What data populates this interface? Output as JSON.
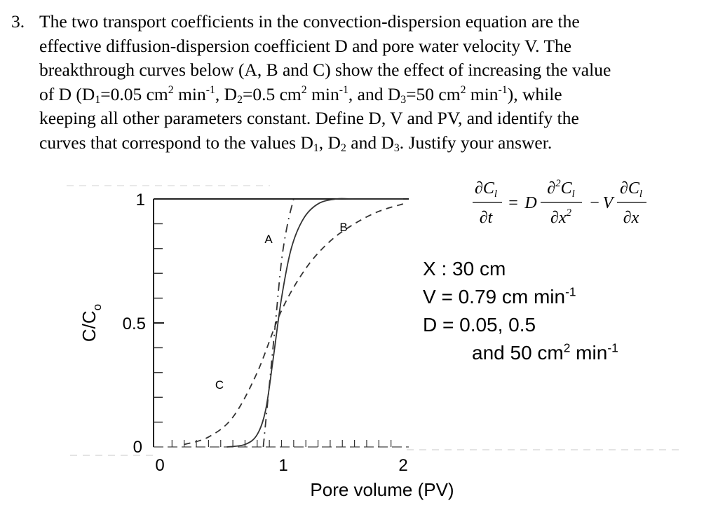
{
  "question": {
    "number": "3.",
    "line1": "The two transport coefficients in the convection-dispersion equation are the",
    "line2": "effective diffusion-dispersion coefficient D and pore water velocity V. The",
    "line3": "breakthrough curves below (A, B and C) show the effect of increasing the value",
    "line4_a": "of D (D",
    "line4_b": "=0.05 cm",
    "line4_c": " min",
    "line4_d": ", D",
    "line4_e": "=0.5 cm",
    "line4_f": " min",
    "line4_g": ", and D",
    "line4_h": "=50 cm",
    "line4_i": " min",
    "line4_j": "), while",
    "sub1": "1",
    "sub2": "2",
    "sub3": "3",
    "sq": "2",
    "neg1": "-1",
    "line5": "keeping all other parameters constant. Define D, V and PV, and identify the",
    "line6_a": "curves that correspond to the values D",
    "line6_b": ", D",
    "line6_c": " and D",
    "line6_d": ". Justify your answer."
  },
  "figure": {
    "ylabel": "C/C",
    "ylabel_sub": "o",
    "xlabel": "Pore volume (PV)",
    "x_ticks": [
      "0",
      "1",
      "2"
    ],
    "y_ticks": [
      "0",
      "0.5",
      "1"
    ],
    "curve_labels": [
      "A",
      "B",
      "C"
    ],
    "equation": {
      "lhs_num": "∂C",
      "lhs_num_sub": "l",
      "lhs_den": "∂t",
      "eq": "=",
      "D": "D",
      "mid_num": "∂",
      "mid_num_sup": "2",
      "mid_num2": "C",
      "mid_num_sub": "l",
      "mid_den": "∂x",
      "mid_den_sup": "2",
      "minus": "−",
      "V": "V",
      "rhs_num": "∂C",
      "rhs_num_sub": "l",
      "rhs_den": "∂x"
    },
    "params": {
      "x_line": "X : 30 cm",
      "v_line": "V = 0.79 cm min",
      "v_sup": "-1",
      "d_line": "D = 0.05, 0.5",
      "d2_line": "and 50 cm",
      "d2_sup": "2",
      "d2_tail": " min",
      "d2_sup2": "-1"
    }
  },
  "chart_data": {
    "type": "line",
    "title": "",
    "xlabel": "Pore volume (PV)",
    "ylabel": "C/Co",
    "xlim": [
      0,
      2
    ],
    "ylim": [
      0,
      1
    ],
    "series": [
      {
        "name": "A",
        "style": "solid",
        "x": [
          0.55,
          0.7,
          0.8,
          0.87,
          0.93,
          1.0,
          1.08,
          1.18,
          1.3,
          1.45,
          1.6,
          2.0
        ],
        "y": [
          0.0,
          0.01,
          0.05,
          0.15,
          0.35,
          0.6,
          0.8,
          0.92,
          0.98,
          1.0,
          1.0,
          1.0
        ]
      },
      {
        "name": "B",
        "style": "dash-dot",
        "x": [
          0.85,
          0.9,
          0.95,
          1.0,
          1.05,
          1.1
        ],
        "y": [
          0.0,
          0.25,
          0.5,
          0.75,
          0.9,
          1.0
        ]
      },
      {
        "name": "C",
        "style": "dashed",
        "x": [
          0.2,
          0.4,
          0.6,
          0.8,
          1.0,
          1.2,
          1.4,
          1.6,
          1.8,
          2.0
        ],
        "y": [
          0.01,
          0.04,
          0.12,
          0.3,
          0.55,
          0.72,
          0.83,
          0.9,
          0.95,
          0.98
        ]
      }
    ]
  }
}
